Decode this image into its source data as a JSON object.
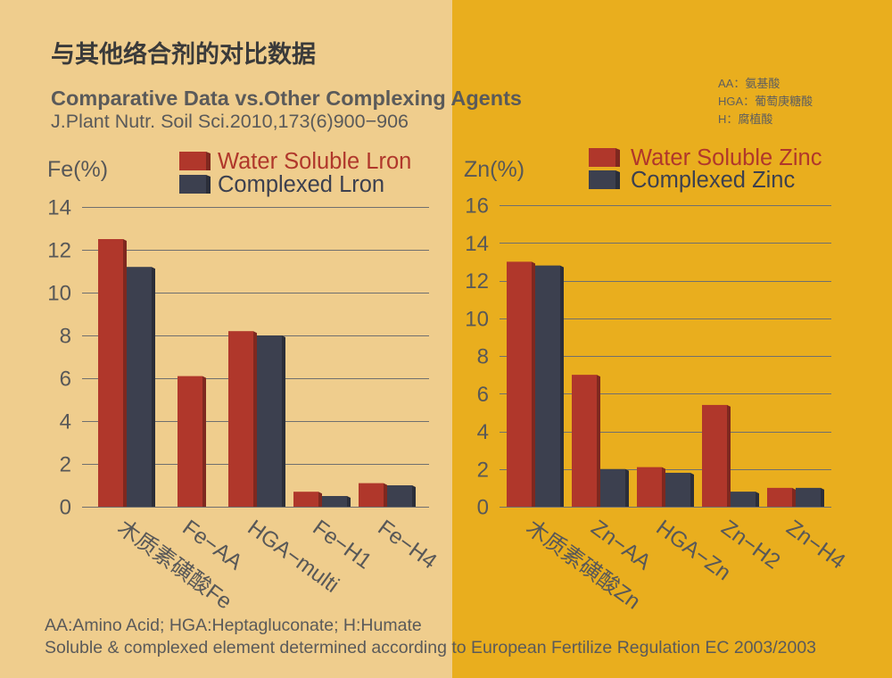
{
  "title": "与其他络合剂的对比数据",
  "subtitle": "Comparative Data vs.Other Complexing Agents",
  "source": "J.Plant Nutr. Soil Sci.2010,173(6)900−906",
  "abbreviations_cn": [
    "AA：氨基酸",
    "HGA：葡萄庚糖酸",
    "H：腐植酸"
  ],
  "footer": {
    "line1": "AA:Amino Acid; HGA:Heptagluconate; H:Humate",
    "line2": "Soluble & complexed element determined according to European Fertilize Regulation EC 2003/2003"
  },
  "colors": {
    "background_left": "#EFCD8D",
    "background_right": "#E9AE1E",
    "water_soluble": "#B0372B",
    "complexed": "#3C404F"
  },
  "chart_data": [
    {
      "type": "bar",
      "ylabel": "Fe(%)",
      "categories": [
        "木质素磺酸Fe",
        "Fe−AA",
        "HGA−multi",
        "Fe−H1",
        "Fe−H4"
      ],
      "series": [
        {
          "name": "Water Soluble Lron",
          "values": [
            12.5,
            6.1,
            8.2,
            0.7,
            1.1
          ]
        },
        {
          "name": "Complexed Lron",
          "values": [
            11.2,
            0,
            8.0,
            0.5,
            1.0
          ]
        }
      ],
      "ylim": [
        0,
        14
      ],
      "yticks": [
        0,
        2,
        4,
        6,
        8,
        10,
        12,
        14
      ],
      "grid": true,
      "legend": "top"
    },
    {
      "type": "bar",
      "ylabel": "Zn(%)",
      "categories": [
        "木质素磺酸Zn",
        "Zn−AA",
        "HGA−Zn",
        "Zn−H2",
        "Zn−H4"
      ],
      "series": [
        {
          "name": "Water Soluble Zinc",
          "values": [
            13.0,
            7.0,
            2.1,
            5.4,
            1.0
          ]
        },
        {
          "name": "Complexed Zinc",
          "values": [
            12.8,
            2.0,
            1.8,
            0.8,
            1.0
          ]
        }
      ],
      "ylim": [
        0,
        16
      ],
      "yticks": [
        0,
        2,
        4,
        6,
        8,
        10,
        12,
        14,
        16
      ],
      "grid": true,
      "legend": "top"
    }
  ]
}
